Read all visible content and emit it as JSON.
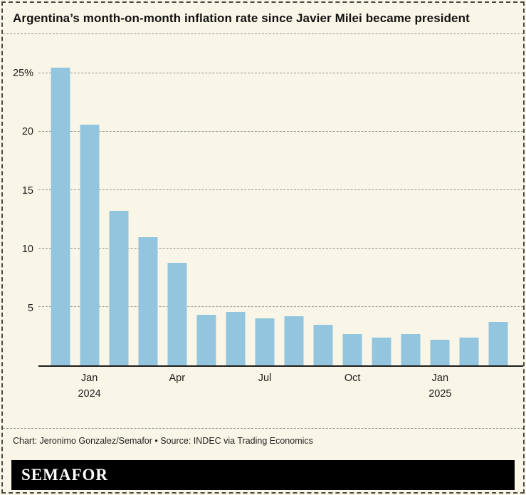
{
  "header": {
    "title": "Argentina’s month-on-month inflation rate since Javier Milei became president"
  },
  "chart_data": {
    "type": "bar",
    "title": "Argentina’s month-on-month inflation rate since Javier Milei became president",
    "xlabel": "",
    "ylabel": "",
    "ylim": [
      0,
      27
    ],
    "grid": true,
    "legend": "none",
    "categories": [
      "Dec 2023",
      "Jan 2024",
      "Feb 2024",
      "Mar 2024",
      "Apr 2024",
      "May 2024",
      "Jun 2024",
      "Jul 2024",
      "Aug 2024",
      "Sep 2024",
      "Oct 2024",
      "Nov 2024",
      "Dec 2024",
      "Jan 2025",
      "Feb 2025",
      "Mar 2025"
    ],
    "values": [
      25.5,
      20.6,
      13.2,
      11.0,
      8.8,
      4.3,
      4.6,
      4.0,
      4.2,
      3.5,
      2.7,
      2.4,
      2.7,
      2.2,
      2.4,
      3.7
    ],
    "yticks": [
      {
        "value": 5,
        "label": "5"
      },
      {
        "value": 10,
        "label": "10"
      },
      {
        "value": 15,
        "label": "15"
      },
      {
        "value": 20,
        "label": "20"
      },
      {
        "value": 25,
        "label": "25%"
      }
    ],
    "xticks": [
      {
        "index": 1,
        "label": "Jan",
        "sublabel": "2024"
      },
      {
        "index": 4,
        "label": "Apr",
        "sublabel": ""
      },
      {
        "index": 7,
        "label": "Jul",
        "sublabel": ""
      },
      {
        "index": 10,
        "label": "Oct",
        "sublabel": ""
      },
      {
        "index": 13,
        "label": "Jan",
        "sublabel": "2025"
      }
    ]
  },
  "footer": {
    "credit": "Chart: Jeronimo Gonzalez/Semafor • Source: INDEC via Trading Economics",
    "logo": "SEMAFOR"
  },
  "colors": {
    "background": "#faf6e7",
    "bar": "#93c5de",
    "grid": "#98968a",
    "axis": "#1c1c1c",
    "frame": "#4a4a42",
    "logo_bg": "#000000",
    "logo_text": "#ffffff"
  }
}
